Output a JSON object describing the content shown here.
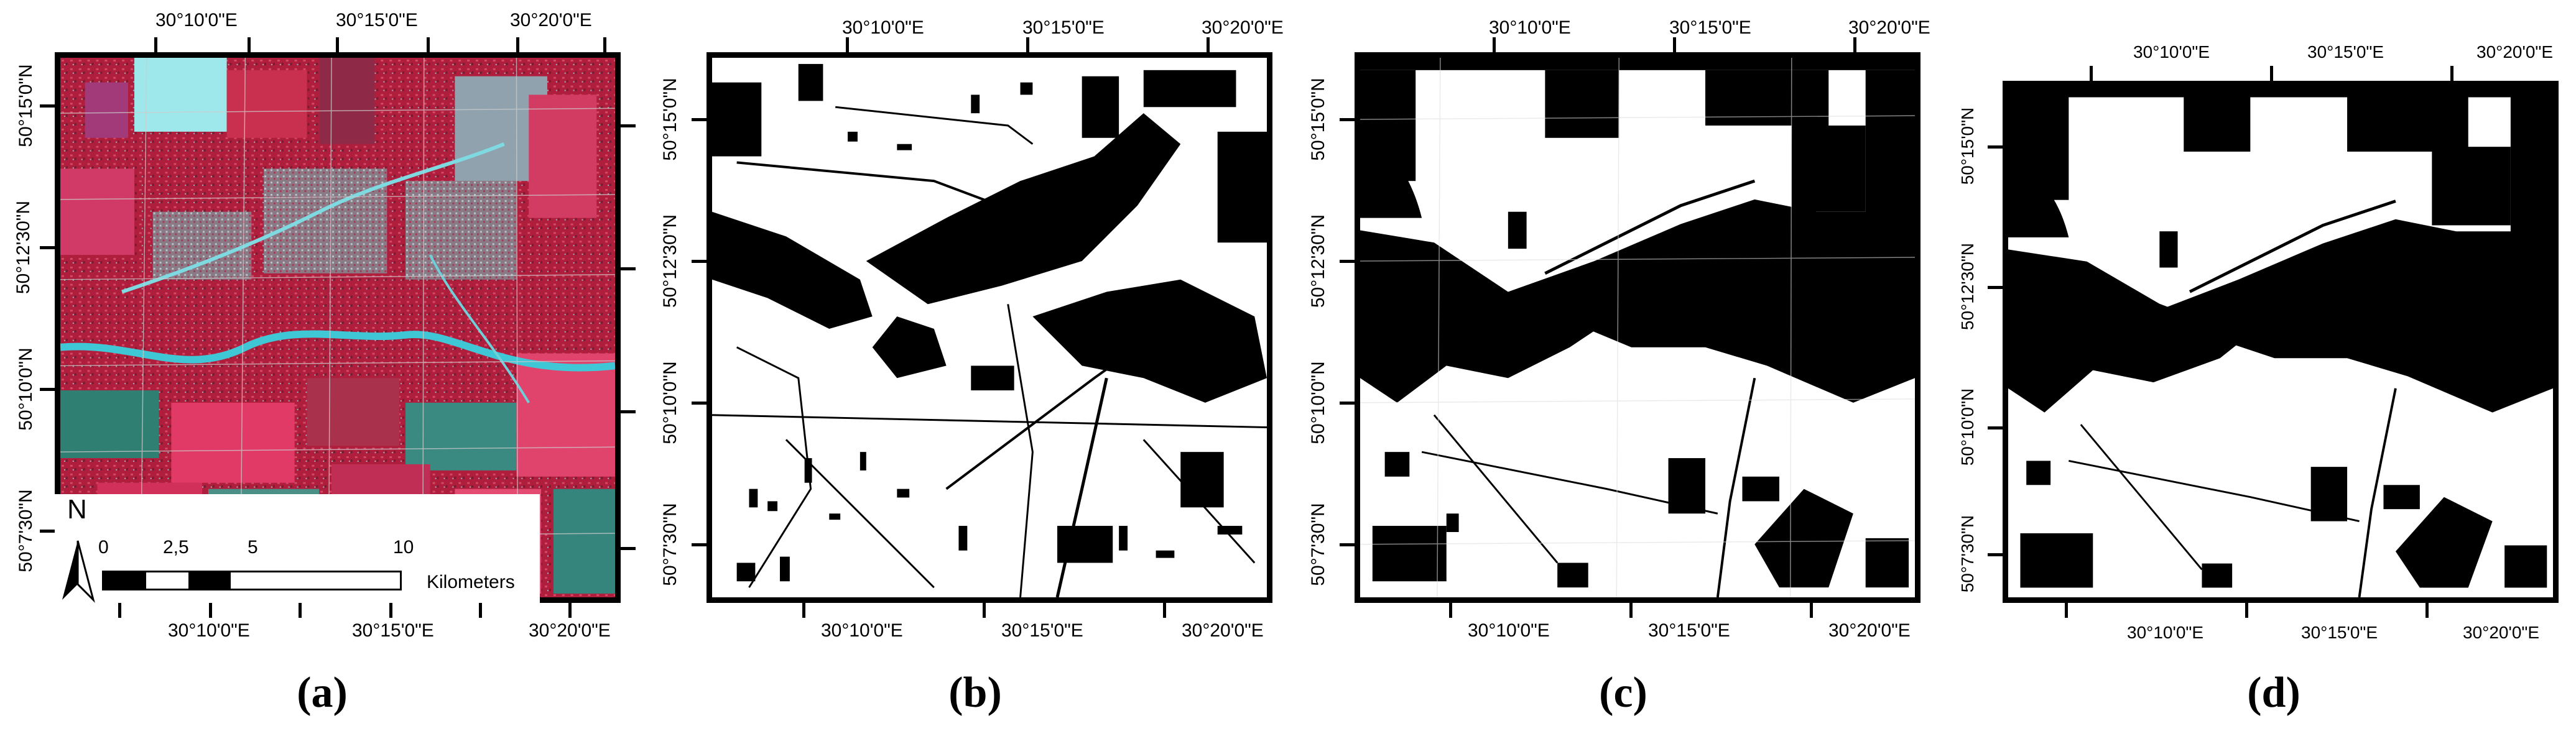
{
  "panels": [
    {
      "caption": "(a)",
      "top_x": [
        "30°10'0\"E",
        "30°15'0\"E",
        "30°20'0\"E"
      ],
      "bottom_x": [
        "30°10'0\"E",
        "30°15'0\"E",
        "30°20'0\"E"
      ],
      "left_y": [
        "50°15'0\"N",
        "50°12'30\"N",
        "50°10'0\"N",
        "50°7'30\"N"
      ]
    },
    {
      "caption": "(b)",
      "top_x": [
        "30°10'0\"E",
        "30°15'0\"E",
        "30°20'0\"E"
      ],
      "bottom_x": [
        "30°10'0\"E",
        "30°15'0\"E",
        "30°20'0\"E"
      ],
      "left_y": [
        "50°15'0\"N",
        "50°12'30\"N",
        "50°10'0\"N",
        "50°7'30\"N"
      ]
    },
    {
      "caption": "(c)",
      "top_x": [
        "30°10'0\"E",
        "30°15'0\"E",
        "30°20'0\"E"
      ],
      "bottom_x": [
        "30°10'0\"E",
        "30°15'0\"E",
        "30°20'0\"E"
      ],
      "left_y": [
        "50°15'0\"N",
        "50°12'30\"N",
        "50°10'0\"N",
        "50°7'30\"N"
      ]
    },
    {
      "caption": "(d)",
      "top_x": [
        "30°10'0\"E",
        "30°15'0\"E",
        "30°20'0\"E"
      ],
      "bottom_x": [
        "30°10'0\"E",
        "30°15'0\"E",
        "30°20'0\"E"
      ],
      "left_y": [
        "50°15'0\"N",
        "50°12'30\"N",
        "50°10'0\"N",
        "50°7'30\"N"
      ]
    }
  ],
  "scalebar": {
    "north": "N",
    "ticks": [
      "0",
      "2,5",
      "5",
      "10"
    ],
    "unit": "Kilometers"
  },
  "colors": {
    "vegetation": "#c8264a",
    "urban": "#8fa6b3",
    "water": "#4fd6e0",
    "mask_black": "#000000",
    "mask_white": "#ffffff"
  }
}
